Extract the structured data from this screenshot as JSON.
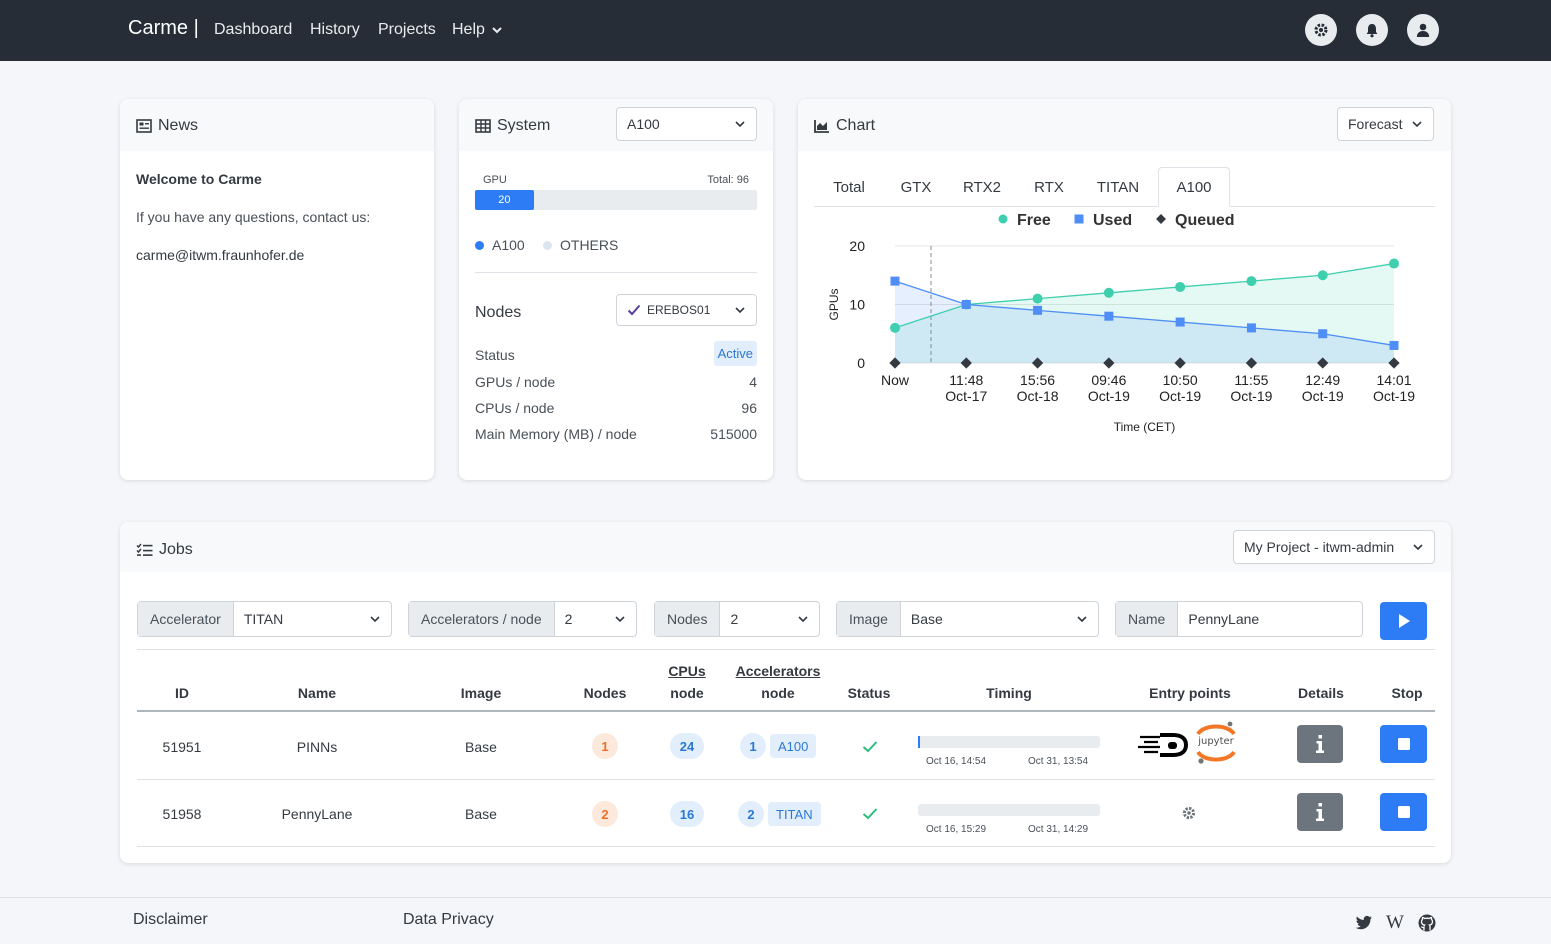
{
  "nav": {
    "brand": "Carme |",
    "items": [
      "Dashboard",
      "History",
      "Projects",
      "Help"
    ]
  },
  "news": {
    "title": "News",
    "heading": "Welcome to Carme",
    "line1": "If you have any questions, contact us:",
    "email": "carme@itwm.fraunhofer.de"
  },
  "system": {
    "title": "System",
    "select": "A100",
    "gpu_label": "GPU",
    "total_label": "Total: 96",
    "bar_value": "20",
    "bar_fraction": 0.2083,
    "legend": [
      "A100",
      "OTHERS"
    ],
    "nodes_title": "Nodes",
    "node_select": "EREBOS01",
    "status_label": "Status",
    "status_value": "Active",
    "rows": [
      {
        "label": "GPUs / node",
        "value": "4"
      },
      {
        "label": "CPUs / node",
        "value": "96"
      },
      {
        "label": "Main Memory (MB) / node",
        "value": "515000"
      }
    ]
  },
  "chart_panel": {
    "title": "Chart",
    "select": "Forecast",
    "tabs": [
      "Total",
      "GTX",
      "RTX2",
      "RTX",
      "TITAN",
      "A100"
    ],
    "active_tab": "A100"
  },
  "chart_data": {
    "type": "line",
    "title": "",
    "ylabel": "GPUs",
    "xlabel": "Time (CET)",
    "ylim": [
      0,
      20
    ],
    "yticks": [
      "0",
      "10",
      "20"
    ],
    "categories": [
      [
        "Now",
        ""
      ],
      [
        "11:48",
        "Oct-17"
      ],
      [
        "15:56",
        "Oct-18"
      ],
      [
        "09:46",
        "Oct-19"
      ],
      [
        "10:50",
        "Oct-19"
      ],
      [
        "11:55",
        "Oct-19"
      ],
      [
        "12:49",
        "Oct-19"
      ],
      [
        "14:01",
        "Oct-19"
      ]
    ],
    "series": [
      {
        "name": "Free",
        "color": "#3ecfae",
        "values": [
          6,
          10,
          11,
          12,
          13,
          14,
          15,
          17
        ]
      },
      {
        "name": "Used",
        "color": "#4f8ef7",
        "values": [
          14,
          10,
          9,
          8,
          7,
          6,
          5,
          3
        ]
      },
      {
        "name": "Queued",
        "color": "#343a40",
        "values": [
          0,
          0,
          0,
          0,
          0,
          0,
          0,
          0
        ]
      }
    ],
    "grid": true,
    "legend": "top"
  },
  "jobs": {
    "title": "Jobs",
    "project_select": "My Project - itwm-admin",
    "filters": [
      {
        "label": "Accelerator",
        "value": "TITAN"
      },
      {
        "label": "Accelerators / node",
        "value": "2"
      },
      {
        "label": "Nodes",
        "value": "2"
      },
      {
        "label": "Image",
        "value": "Base"
      },
      {
        "label": "Name",
        "value": "PennyLane"
      }
    ],
    "headers": {
      "id": "ID",
      "name": "Name",
      "image": "Image",
      "nodes": "Nodes",
      "cpus_top": "CPUs",
      "cpus_bottom": "node",
      "acc_top": "Accelerators",
      "acc_bottom": "node",
      "status": "Status",
      "timing": "Timing",
      "entry": "Entry points",
      "details": "Details",
      "stop": "Stop"
    },
    "rows": [
      {
        "id": "51951",
        "name": "PINNs",
        "image": "Base",
        "nodes": "1",
        "cpus": "24",
        "acc": "1",
        "acc_type": "A100",
        "start": "Oct 16, 14:54",
        "end": "Oct 31, 13:54",
        "entry_text": "jupyter"
      },
      {
        "id": "51958",
        "name": "PennyLane",
        "image": "Base",
        "nodes": "2",
        "cpus": "16",
        "acc": "2",
        "acc_type": "TITAN",
        "start": "Oct 16, 15:29",
        "end": "Oct 31, 14:29",
        "entry_text": ""
      }
    ]
  },
  "footer": {
    "links": [
      "Disclaimer",
      "Data Privacy"
    ]
  }
}
